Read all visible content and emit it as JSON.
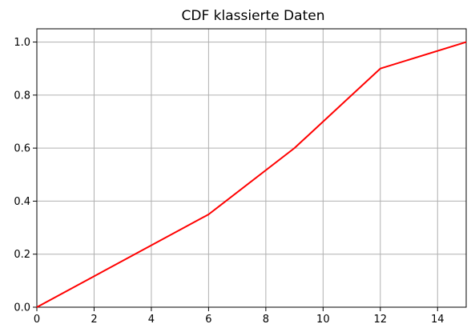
{
  "chart_data": {
    "type": "line",
    "title": "CDF klassierte Daten",
    "xlabel": "",
    "ylabel": "",
    "xlim": [
      0,
      15
    ],
    "ylim": [
      0,
      1.05
    ],
    "x_ticks": [
      0,
      2,
      4,
      6,
      8,
      10,
      12,
      14
    ],
    "x_tick_labels": [
      "0",
      "2",
      "4",
      "6",
      "8",
      "10",
      "12",
      "14"
    ],
    "y_ticks": [
      0.0,
      0.2,
      0.4,
      0.6,
      0.8,
      1.0
    ],
    "y_tick_labels": [
      "0.0",
      "0.2",
      "0.4",
      "0.6",
      "0.8",
      "1.0"
    ],
    "grid": true,
    "legend": "none",
    "series": [
      {
        "color": "#ff0000",
        "x": [
          0,
          6,
          9,
          12,
          15
        ],
        "y": [
          0,
          0.35,
          0.6,
          0.9,
          1.0
        ]
      }
    ]
  },
  "colors": {
    "grid": "#b0b0b0",
    "axis": "#000000",
    "background": "#ffffff"
  }
}
